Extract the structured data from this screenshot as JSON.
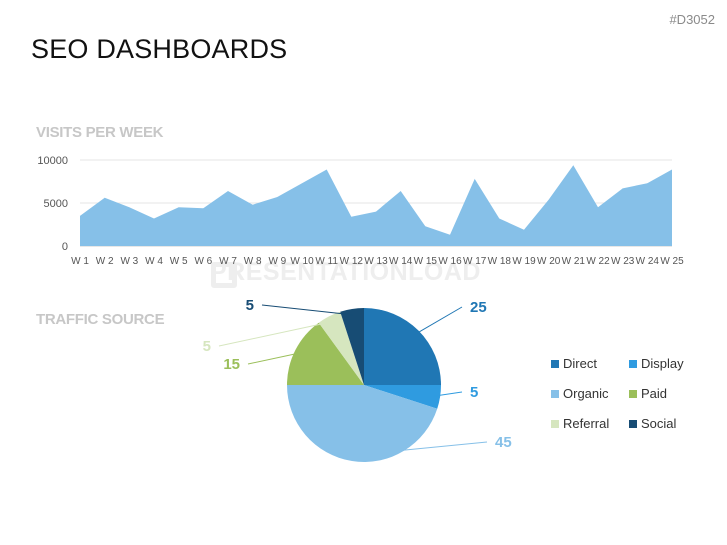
{
  "page_code": "#D3052",
  "title": "SEO DASHBOARDS",
  "watermark": "PRESENTATIONLOAD",
  "chart_data": [
    {
      "type": "area",
      "title": "VISITS PER WEEK",
      "categories": [
        "W 1",
        "W 2",
        "W 3",
        "W 4",
        "W 5",
        "W 6",
        "W 7",
        "W 8",
        "W 9",
        "W 10",
        "W 11",
        "W 12",
        "W 13",
        "W 14",
        "W 15",
        "W 16",
        "W 17",
        "W 18",
        "W 19",
        "W 20",
        "W 21",
        "W 22",
        "W 23",
        "W 24",
        "W 25"
      ],
      "values": [
        3500,
        5600,
        4500,
        3200,
        4500,
        4400,
        6400,
        4800,
        5700,
        7300,
        8900,
        3400,
        4000,
        6400,
        2300,
        1300,
        7800,
        3200,
        1900,
        5400,
        9400,
        4500,
        6700,
        7300,
        8900
      ],
      "yticks": [
        0,
        5000,
        10000
      ],
      "ylim": [
        0,
        10000
      ],
      "grid": true,
      "color": "#86c0e8"
    },
    {
      "type": "pie",
      "title": "TRAFFIC SOURCE",
      "labels": [
        "Direct",
        "Display",
        "Organic",
        "Paid",
        "Referral",
        "Social"
      ],
      "values": [
        25,
        5,
        45,
        15,
        5,
        5
      ],
      "colors": [
        "#2077b4",
        "#2f9be0",
        "#86c0e8",
        "#9bbf5a",
        "#d6e6bf",
        "#174c74"
      ],
      "label_colors": [
        "#2077b4",
        "#2f9be0",
        "#86c0e8",
        "#9bbf5a",
        "#d6e6bf",
        "#174c74"
      ],
      "legend_position": "right"
    }
  ]
}
